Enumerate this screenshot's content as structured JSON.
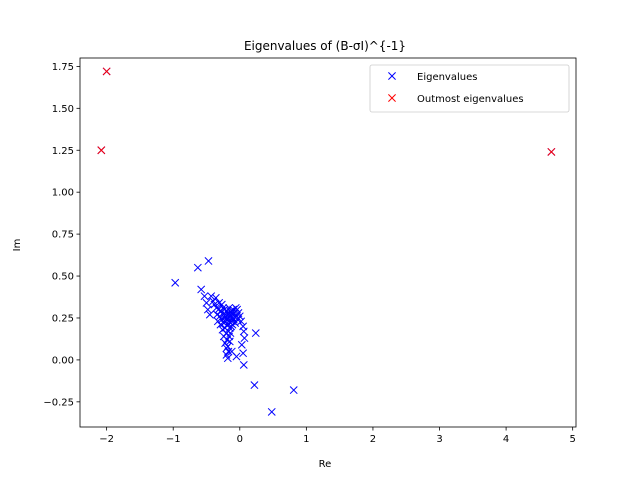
{
  "chart_data": {
    "type": "scatter",
    "title": "Eigenvalues of (B-σI)^{-1}",
    "xlabel": "Re",
    "ylabel": "Im",
    "xlim": [
      -2.4,
      5.05
    ],
    "ylim": [
      -0.4,
      1.8
    ],
    "xticks": [
      -2,
      -1,
      0,
      1,
      2,
      3,
      4,
      5
    ],
    "xtick_labels": [
      "−2",
      "−1",
      "0",
      "1",
      "2",
      "3",
      "4",
      "5"
    ],
    "yticks": [
      -0.25,
      0.0,
      0.25,
      0.5,
      0.75,
      1.0,
      1.25,
      1.5,
      1.75
    ],
    "ytick_labels": [
      "−0.25",
      "0.00",
      "0.25",
      "0.50",
      "0.75",
      "1.00",
      "1.25",
      "1.50",
      "1.75"
    ],
    "grid": false,
    "legend_position": "upper right",
    "marker": "x",
    "series": [
      {
        "name": "Eigenvalues",
        "color": "#0000ff",
        "points": [
          [
            -2.08,
            1.25
          ],
          [
            -2.0,
            1.72
          ],
          [
            4.68,
            1.24
          ],
          [
            -0.97,
            0.46
          ],
          [
            -0.63,
            0.55
          ],
          [
            -0.47,
            0.59
          ],
          [
            -0.58,
            0.42
          ],
          [
            -0.53,
            0.38
          ],
          [
            -0.5,
            0.34
          ],
          [
            -0.48,
            0.3
          ],
          [
            -0.45,
            0.27
          ],
          [
            -0.43,
            0.38
          ],
          [
            -0.4,
            0.35
          ],
          [
            -0.38,
            0.33
          ],
          [
            -0.36,
            0.37
          ],
          [
            -0.35,
            0.31
          ],
          [
            -0.34,
            0.27
          ],
          [
            -0.33,
            0.23
          ],
          [
            -0.32,
            0.3
          ],
          [
            -0.31,
            0.34
          ],
          [
            -0.3,
            0.26
          ],
          [
            -0.29,
            0.21
          ],
          [
            -0.28,
            0.29
          ],
          [
            -0.27,
            0.33
          ],
          [
            -0.27,
            0.24
          ],
          [
            -0.26,
            0.18
          ],
          [
            -0.25,
            0.27
          ],
          [
            -0.25,
            0.31
          ],
          [
            -0.24,
            0.22
          ],
          [
            -0.24,
            0.14
          ],
          [
            -0.23,
            0.25
          ],
          [
            -0.23,
            0.3
          ],
          [
            -0.22,
            0.19
          ],
          [
            -0.22,
            0.1
          ],
          [
            -0.21,
            0.27
          ],
          [
            -0.21,
            0.23
          ],
          [
            -0.2,
            0.16
          ],
          [
            -0.2,
            0.07
          ],
          [
            -0.2,
            0.03
          ],
          [
            -0.19,
            0.29
          ],
          [
            -0.19,
            0.25
          ],
          [
            -0.19,
            0.12
          ],
          [
            -0.18,
            0.21
          ],
          [
            -0.18,
            0.08
          ],
          [
            -0.18,
            0.01
          ],
          [
            -0.17,
            0.27
          ],
          [
            -0.17,
            0.17
          ],
          [
            -0.17,
            0.05
          ],
          [
            -0.16,
            0.23
          ],
          [
            -0.16,
            0.14
          ],
          [
            -0.16,
            0.31
          ],
          [
            -0.15,
            0.26
          ],
          [
            -0.15,
            0.19
          ],
          [
            -0.15,
            0.11
          ],
          [
            -0.14,
            0.29
          ],
          [
            -0.14,
            0.22
          ],
          [
            -0.14,
            0.16
          ],
          [
            -0.13,
            0.25
          ],
          [
            -0.13,
            0.2
          ],
          [
            -0.12,
            0.28
          ],
          [
            -0.12,
            0.23
          ],
          [
            -0.11,
            0.27
          ],
          [
            -0.11,
            0.21
          ],
          [
            -0.1,
            0.25
          ],
          [
            -0.1,
            0.3
          ],
          [
            -0.09,
            0.24
          ],
          [
            -0.08,
            0.28
          ],
          [
            -0.07,
            0.22
          ],
          [
            -0.06,
            0.31
          ],
          [
            -0.05,
            0.26
          ],
          [
            -0.04,
            0.3
          ],
          [
            -0.03,
            0.24
          ],
          [
            -0.02,
            0.28
          ],
          [
            0.0,
            0.26
          ],
          [
            0.02,
            0.23
          ],
          [
            0.03,
            0.09
          ],
          [
            0.05,
            0.2
          ],
          [
            0.06,
            0.17
          ],
          [
            0.07,
            0.13
          ],
          [
            0.05,
            0.04
          ],
          [
            0.06,
            -0.03
          ],
          [
            -0.05,
            0.02
          ],
          [
            -0.12,
            0.05
          ],
          [
            0.24,
            0.16
          ],
          [
            0.22,
            -0.15
          ],
          [
            0.81,
            -0.18
          ],
          [
            0.48,
            -0.31
          ]
        ]
      },
      {
        "name": "Outmost eigenvalues",
        "color": "#ff0000",
        "points": [
          [
            -2.08,
            1.25
          ],
          [
            -2.0,
            1.72
          ],
          [
            4.68,
            1.24
          ]
        ]
      }
    ]
  }
}
